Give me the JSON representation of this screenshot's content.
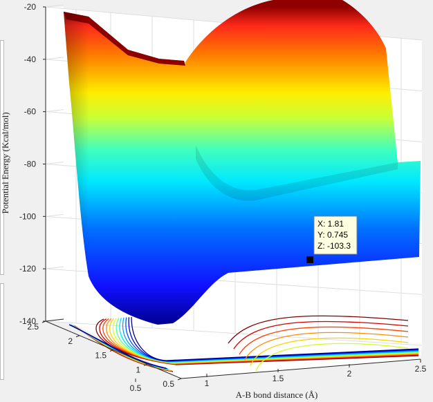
{
  "chart_data": {
    "type": "surface",
    "title": "",
    "xlabel": "A-B bond distance (Å)",
    "ylabel": "",
    "zlabel": "Potential Energy (Kcal/mol)",
    "colormap": "jet",
    "grid": true,
    "xlim": [
      0.5,
      2.5
    ],
    "ylim": [
      0.5,
      2.5
    ],
    "zlim": [
      -140,
      -20
    ],
    "x_ticks": [
      "0.5",
      "1",
      "1.5",
      "2",
      "2.5"
    ],
    "y_ticks": [
      "0.5",
      "1",
      "1.5",
      "2",
      "2.5"
    ],
    "z_ticks": [
      "-20",
      "-40",
      "-60",
      "-80",
      "-100",
      "-120",
      "-140"
    ],
    "contour_projection": true,
    "datatip": {
      "x_label": "X: 1.81",
      "y_label": "Y: 0.745",
      "z_label": "Z: -103.3",
      "x": 1.81,
      "y": 0.745,
      "z": -103.3
    }
  }
}
